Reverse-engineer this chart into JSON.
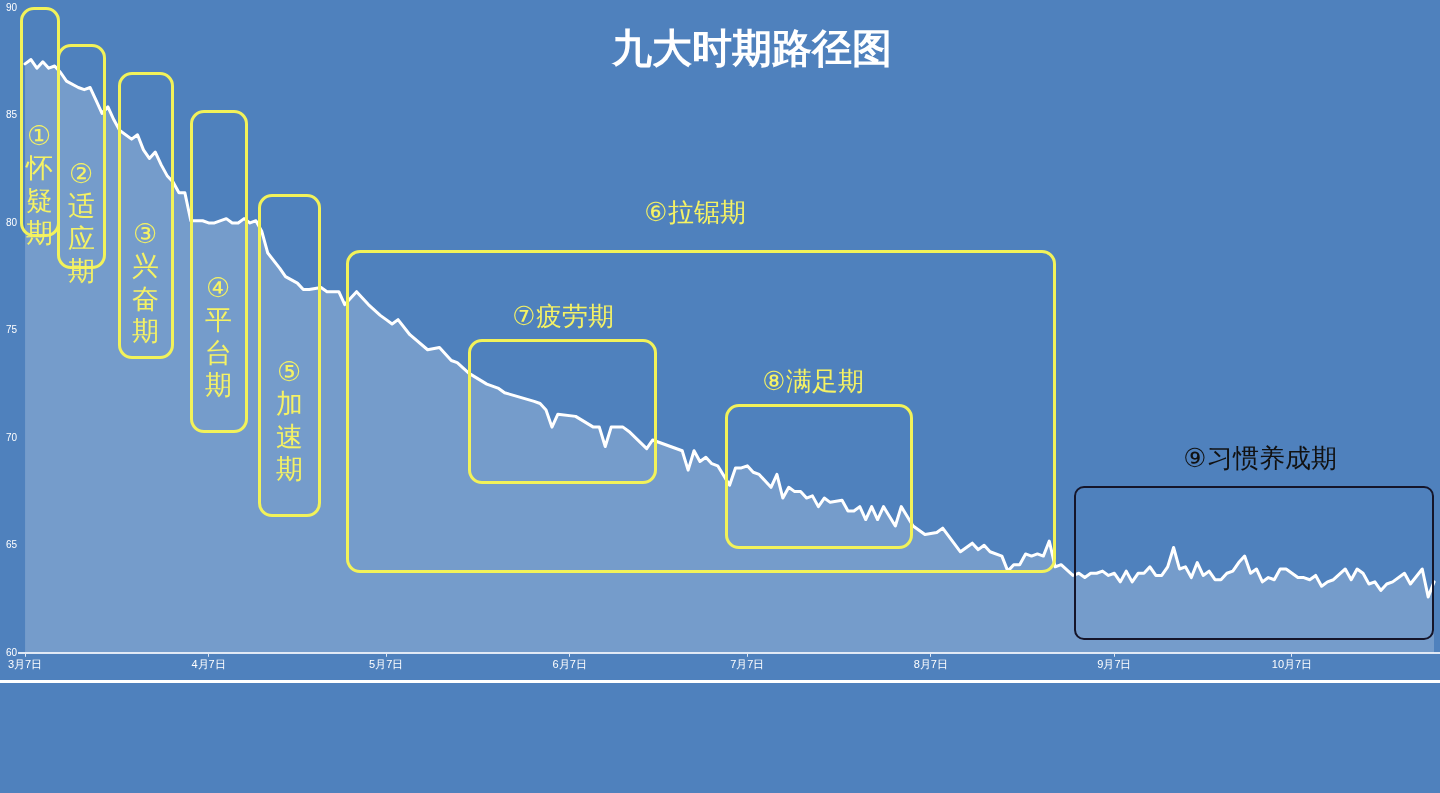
{
  "chart_data": {
    "type": "area",
    "title": "九大时期路径图",
    "x": [
      "--03-07",
      "--03-08",
      "--03-09",
      "--03-10",
      "--03-11",
      "--03-12",
      "--03-13",
      "--03-14",
      "--03-16",
      "--03-17",
      "--03-18",
      "--03-19",
      "--03-20",
      "--03-21",
      "--03-22",
      "--03-23",
      "--03-25",
      "--03-26",
      "--03-27",
      "--03-28",
      "--03-29",
      "--03-30",
      "--03-31",
      "--04-01",
      "--04-02",
      "--04-03",
      "--04-04",
      "--04-05",
      "--04-06",
      "--04-07",
      "--04-08",
      "--04-10",
      "--04-11",
      "--04-12",
      "--04-13",
      "--04-14",
      "--04-15",
      "--04-16",
      "--04-17",
      "--04-19",
      "--04-20",
      "--04-22",
      "--04-23",
      "--04-24",
      "--04-26",
      "--04-27",
      "--04-29",
      "--04-30",
      "--05-02",
      "--05-04",
      "--05-06",
      "--05-07",
      "--05-08",
      "--05-09",
      "--05-11",
      "--05-14",
      "--05-16",
      "--05-18",
      "--05-19",
      "--05-21",
      "--05-24",
      "--05-26",
      "--05-27",
      "--06-01",
      "--06-02",
      "--06-03",
      "--06-04",
      "--06-05",
      "--06-08",
      "--06-11",
      "--06-12",
      "--06-13",
      "--06-14",
      "--06-16",
      "--06-17",
      "--06-20",
      "--06-21",
      "--06-26",
      "--06-27",
      "--06-28",
      "--06-29",
      "--06-30",
      "--07-01",
      "--07-02",
      "--07-04",
      "--07-05",
      "--07-06",
      "--07-07",
      "--07-08",
      "--07-09",
      "--07-11",
      "--07-12",
      "--07-13",
      "--07-14",
      "--07-15",
      "--07-16",
      "--07-17",
      "--07-18",
      "--07-19",
      "--07-20",
      "--07-21",
      "--07-23",
      "--07-24",
      "--07-25",
      "--07-26",
      "--07-27",
      "--07-28",
      "--07-29",
      "--07-30",
      "--08-01",
      "--08-02",
      "--08-04",
      "--08-06",
      "--08-08",
      "--08-09",
      "--08-12",
      "--08-14",
      "--08-15",
      "--08-16",
      "--08-17",
      "--08-19",
      "--08-20",
      "--08-21",
      "--08-22",
      "--08-23",
      "--08-24",
      "--08-25",
      "--08-26",
      "--08-27",
      "--08-28",
      "--08-29",
      "--08-31",
      "--09-01",
      "--09-02",
      "--09-03",
      "--09-04",
      "--09-05",
      "--09-06",
      "--09-07",
      "--09-08",
      "--09-09",
      "--09-10",
      "--09-11",
      "--09-12",
      "--09-13",
      "--09-14",
      "--09-15",
      "--09-16",
      "--09-17",
      "--09-18",
      "--09-19",
      "--09-20",
      "--09-21",
      "--09-22",
      "--09-23",
      "--09-24",
      "--09-25",
      "--09-26",
      "--09-27",
      "--09-28",
      "--09-29",
      "--09-30",
      "--10-01",
      "--10-02",
      "--10-03",
      "--10-04",
      "--10-05",
      "--10-06",
      "--10-07",
      "--10-08",
      "--10-09",
      "--10-10",
      "--10-11",
      "--10-12",
      "--10-13",
      "--10-14",
      "--10-16",
      "--10-17",
      "--10-18",
      "--10-19",
      "--10-20",
      "--10-21",
      "--10-22",
      "--10-23",
      "--10-24",
      "--10-26",
      "--10-27",
      "--10-29",
      "--10-30",
      "--10-31"
    ],
    "series": [
      {
        "color": "#ffffff",
        "values": [
          87.4,
          87.6,
          87.2,
          87.5,
          87.2,
          87.3,
          87.0,
          86.6,
          86.3,
          86.2,
          86.3,
          85.7,
          85.1,
          85.4,
          84.8,
          84.3,
          83.9,
          84.1,
          83.4,
          83.0,
          83.3,
          82.7,
          82.2,
          81.9,
          81.4,
          81.4,
          80.1,
          80.1,
          80.1,
          80.0,
          80.0,
          80.2,
          80.0,
          80.0,
          80.2,
          80.0,
          80.1,
          79.6,
          78.6,
          77.9,
          77.5,
          77.2,
          76.9,
          76.9,
          77.0,
          76.8,
          76.8,
          76.2,
          76.8,
          76.2,
          75.7,
          75.5,
          75.3,
          75.5,
          74.8,
          74.1,
          74.2,
          73.6,
          73.5,
          73.0,
          72.5,
          72.3,
          72.1,
          71.7,
          71.6,
          71.3,
          70.5,
          71.1,
          71.0,
          70.5,
          70.5,
          69.6,
          70.5,
          70.5,
          70.3,
          69.5,
          69.9,
          69.4,
          68.5,
          69.4,
          68.9,
          69.1,
          68.8,
          68.7,
          67.8,
          68.6,
          68.6,
          68.7,
          68.4,
          68.3,
          67.7,
          68.3,
          67.2,
          67.7,
          67.5,
          67.5,
          67.2,
          67.3,
          66.8,
          67.2,
          67.0,
          67.1,
          66.6,
          66.6,
          66.8,
          66.2,
          66.8,
          66.2,
          66.8,
          65.9,
          66.8,
          65.9,
          65.5,
          65.6,
          65.8,
          64.7,
          65.1,
          64.8,
          65.0,
          64.7,
          64.5,
          63.8,
          64.1,
          64.1,
          64.6,
          64.5,
          64.6,
          64.5,
          65.2,
          64.0,
          64.1,
          63.6,
          63.7,
          63.5,
          63.7,
          63.7,
          63.8,
          63.6,
          63.7,
          63.3,
          63.8,
          63.3,
          63.7,
          63.7,
          64.0,
          63.6,
          63.6,
          64.0,
          64.9,
          63.9,
          64.0,
          63.5,
          64.2,
          63.6,
          63.8,
          63.4,
          63.4,
          63.7,
          63.8,
          64.2,
          64.5,
          63.7,
          63.9,
          63.3,
          63.5,
          63.4,
          63.9,
          63.9,
          63.7,
          63.5,
          63.5,
          63.4,
          63.6,
          63.1,
          63.3,
          63.4,
          63.9,
          63.4,
          63.9,
          63.7,
          63.2,
          63.3,
          62.9,
          63.2,
          63.3,
          63.7,
          63.2,
          63.9,
          62.6,
          63.3
        ]
      }
    ],
    "xlim": [
      "--03-06",
      "--11-01"
    ],
    "xticks": [
      {
        "value": "--03-07",
        "label": "3月7日"
      },
      {
        "value": "--04-07",
        "label": "4月7日"
      },
      {
        "value": "--05-07",
        "label": "5月7日"
      },
      {
        "value": "--06-07",
        "label": "6月7日"
      },
      {
        "value": "--07-07",
        "label": "7月7日"
      },
      {
        "value": "--08-07",
        "label": "8月7日"
      },
      {
        "value": "--09-07",
        "label": "9月7日"
      },
      {
        "value": "--10-07",
        "label": "10月7日"
      }
    ],
    "ylim": [
      60,
      90
    ],
    "yticks": [
      60,
      65,
      70,
      75,
      80,
      85,
      90
    ],
    "marker": "none",
    "legend": false,
    "annotations": [
      "①怀疑期",
      "②适应期",
      "③兴奋期",
      "④平台期",
      "⑤加速期",
      "⑥拉锯期",
      "⑦疲劳期",
      "⑧满足期",
      "⑨习惯养成期"
    ]
  }
}
